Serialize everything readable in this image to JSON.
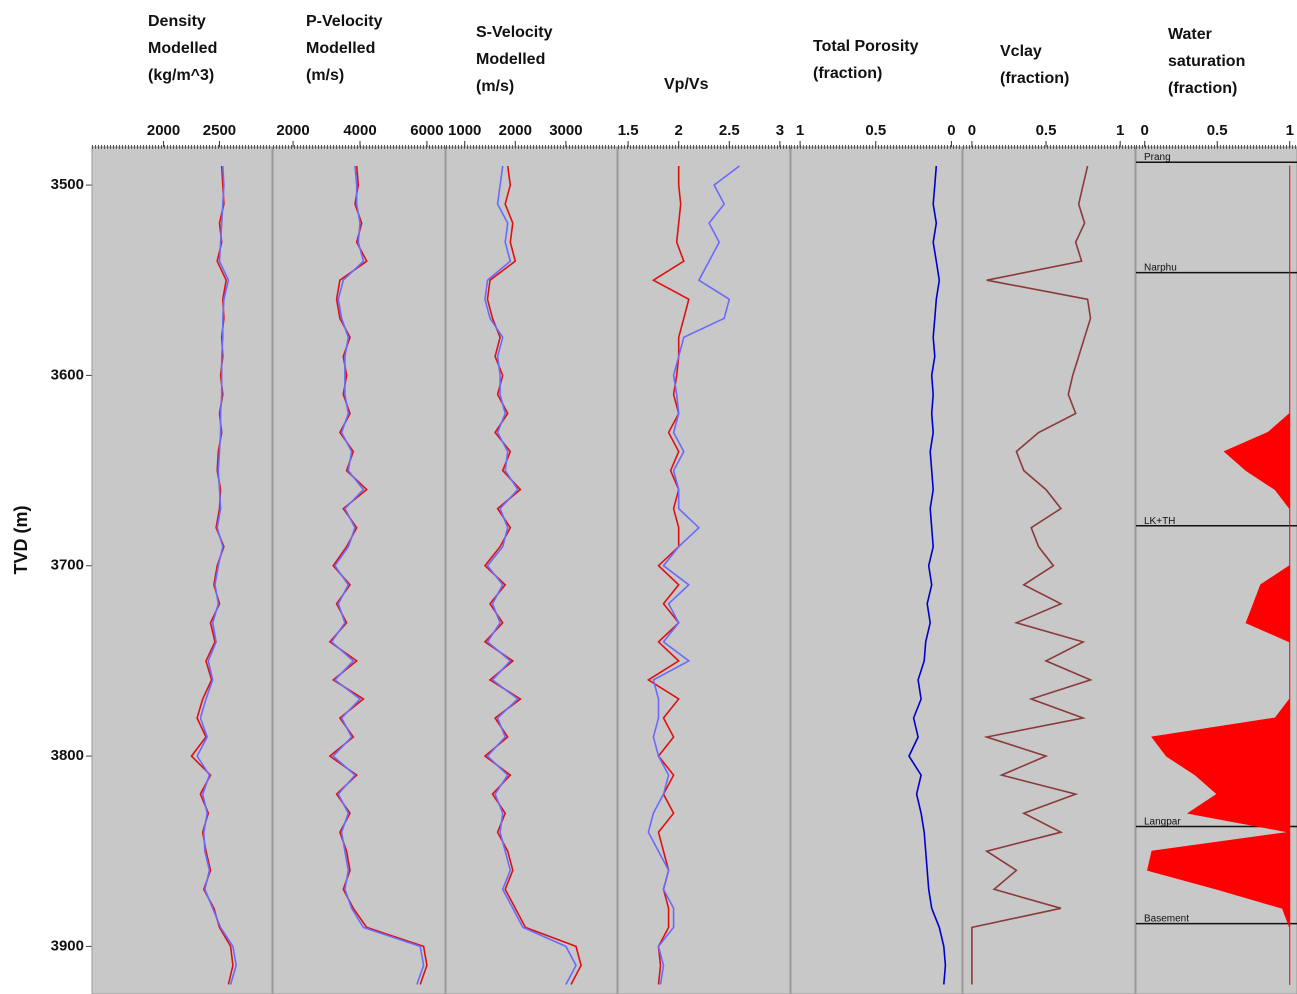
{
  "depth_axis": {
    "label": "TVD (m)",
    "ylim": [
      3480,
      3925
    ],
    "yticks": [
      3500,
      3600,
      3700,
      3800,
      3900
    ],
    "depths": [
      3490,
      3500,
      3510,
      3520,
      3530,
      3540,
      3550,
      3560,
      3570,
      3580,
      3590,
      3600,
      3610,
      3620,
      3630,
      3640,
      3650,
      3660,
      3670,
      3680,
      3690,
      3700,
      3710,
      3720,
      3730,
      3740,
      3750,
      3760,
      3770,
      3780,
      3790,
      3800,
      3810,
      3820,
      3830,
      3840,
      3850,
      3860,
      3870,
      3880,
      3890,
      3900,
      3910,
      3920
    ]
  },
  "chart_data": [
    {
      "type": "line",
      "title": [
        "Density",
        "Modelled",
        "(kg/m^3)"
      ],
      "xlim": [
        1360,
        2970
      ],
      "xticks": [
        2000,
        2500
      ],
      "series": [
        {
          "color": "#e01010",
          "values": [
            2520,
            2530,
            2540,
            2500,
            2520,
            2480,
            2560,
            2530,
            2540,
            2520,
            2530,
            2510,
            2530,
            2500,
            2520,
            2490,
            2480,
            2510,
            2500,
            2470,
            2540,
            2480,
            2450,
            2500,
            2420,
            2460,
            2380,
            2430,
            2350,
            2300,
            2380,
            2250,
            2420,
            2330,
            2400,
            2350,
            2380,
            2420,
            2360,
            2450,
            2500,
            2600,
            2620,
            2580
          ]
        },
        {
          "color": "#6a6aff",
          "values": [
            2530,
            2540,
            2530,
            2520,
            2510,
            2500,
            2580,
            2540,
            2530,
            2530,
            2520,
            2520,
            2520,
            2510,
            2510,
            2500,
            2490,
            2500,
            2510,
            2480,
            2530,
            2490,
            2460,
            2490,
            2440,
            2470,
            2400,
            2440,
            2380,
            2330,
            2390,
            2300,
            2410,
            2350,
            2390,
            2360,
            2370,
            2410,
            2370,
            2440,
            2510,
            2620,
            2650,
            2600
          ]
        }
      ]
    },
    {
      "type": "line",
      "title": [
        "P-Velocity",
        "Modelled",
        "(m/s)"
      ],
      "xlim": [
        1400,
        6540
      ],
      "xticks": [
        2000,
        4000,
        6000
      ],
      "series": [
        {
          "color": "#e01010",
          "values": [
            3900,
            3950,
            3850,
            4050,
            3900,
            4200,
            3400,
            3300,
            3400,
            3700,
            3500,
            3600,
            3500,
            3700,
            3400,
            3800,
            3600,
            4200,
            3500,
            3900,
            3600,
            3200,
            3700,
            3300,
            3600,
            3100,
            3900,
            3200,
            4100,
            3400,
            3800,
            3100,
            3900,
            3300,
            3700,
            3400,
            3600,
            3700,
            3500,
            3800,
            4200,
            5900,
            6000,
            5800
          ]
        },
        {
          "color": "#6a6aff",
          "values": [
            3850,
            3900,
            3900,
            4000,
            3950,
            4100,
            3500,
            3350,
            3450,
            3650,
            3550,
            3550,
            3550,
            3650,
            3450,
            3750,
            3650,
            4100,
            3550,
            3850,
            3650,
            3250,
            3650,
            3350,
            3550,
            3150,
            3800,
            3250,
            4000,
            3450,
            3750,
            3200,
            3850,
            3350,
            3650,
            3450,
            3550,
            3650,
            3550,
            3750,
            4100,
            5800,
            5900,
            5700
          ]
        }
      ]
    },
    {
      "type": "line",
      "title": [
        "S-Velocity",
        "Modelled",
        "(m/s)"
      ],
      "xlim": [
        630,
        4010
      ],
      "xticks": [
        1000,
        2000,
        3000
      ],
      "series": [
        {
          "color": "#e01010",
          "values": [
            1850,
            1900,
            1800,
            1950,
            1900,
            2000,
            1500,
            1450,
            1550,
            1700,
            1600,
            1750,
            1650,
            1850,
            1600,
            1900,
            1750,
            2100,
            1650,
            1900,
            1700,
            1400,
            1800,
            1500,
            1750,
            1400,
            1950,
            1500,
            2100,
            1600,
            1850,
            1400,
            1900,
            1550,
            1800,
            1650,
            1850,
            1950,
            1800,
            2000,
            2200,
            3200,
            3300,
            3100
          ]
        },
        {
          "color": "#6a6aff",
          "values": [
            1750,
            1700,
            1650,
            1850,
            1800,
            1900,
            1450,
            1400,
            1500,
            1750,
            1650,
            1700,
            1700,
            1800,
            1650,
            1850,
            1800,
            2050,
            1700,
            1850,
            1750,
            1450,
            1750,
            1550,
            1700,
            1450,
            1900,
            1550,
            2050,
            1650,
            1800,
            1450,
            1850,
            1600,
            1750,
            1700,
            1800,
            1900,
            1750,
            1950,
            2150,
            3000,
            3200,
            3000
          ]
        }
      ]
    },
    {
      "type": "line",
      "title": [
        "Vp/Vs"
      ],
      "xlim": [
        1.4,
        3.1
      ],
      "xticks": [
        1.5,
        2,
        2.5,
        3
      ],
      "series": [
        {
          "color": "#e01010",
          "values": [
            2.0,
            2.0,
            2.02,
            2.0,
            1.98,
            2.05,
            1.75,
            2.1,
            2.05,
            2.0,
            2.0,
            1.98,
            1.95,
            2.0,
            1.9,
            2.0,
            1.92,
            2.0,
            1.95,
            2.0,
            2.0,
            1.8,
            2.0,
            1.85,
            2.0,
            1.8,
            2.0,
            1.7,
            2.0,
            1.85,
            1.95,
            1.8,
            1.95,
            1.85,
            1.95,
            1.8,
            1.85,
            1.9,
            1.85,
            1.9,
            1.9,
            1.8,
            1.82,
            1.8
          ]
        },
        {
          "color": "#6a6aff",
          "values": [
            2.6,
            2.35,
            2.45,
            2.3,
            2.4,
            2.3,
            2.2,
            2.5,
            2.45,
            2.05,
            2.0,
            1.95,
            1.98,
            2.0,
            1.95,
            2.05,
            1.95,
            2.0,
            2.0,
            2.2,
            2.0,
            1.85,
            2.1,
            1.9,
            2.0,
            1.85,
            2.1,
            1.75,
            1.8,
            1.8,
            1.75,
            1.8,
            1.9,
            1.85,
            1.75,
            1.7,
            1.8,
            1.9,
            1.85,
            1.95,
            1.95,
            1.8,
            1.85,
            1.82
          ]
        }
      ]
    },
    {
      "type": "line",
      "title": [
        "Total Porosity",
        "(fraction)"
      ],
      "xlim": [
        1.06,
        -0.07
      ],
      "xticks": [
        1,
        0.5,
        0
      ],
      "series": [
        {
          "color": "#0000cc",
          "values": [
            0.1,
            0.11,
            0.12,
            0.1,
            0.12,
            0.1,
            0.08,
            0.1,
            0.11,
            0.12,
            0.11,
            0.13,
            0.12,
            0.13,
            0.12,
            0.14,
            0.13,
            0.12,
            0.14,
            0.13,
            0.12,
            0.15,
            0.13,
            0.16,
            0.14,
            0.17,
            0.18,
            0.22,
            0.2,
            0.25,
            0.22,
            0.28,
            0.2,
            0.23,
            0.2,
            0.18,
            0.17,
            0.16,
            0.15,
            0.13,
            0.08,
            0.05,
            0.04,
            0.05
          ]
        }
      ]
    },
    {
      "type": "line",
      "title": [
        "Vclay",
        "(fraction)"
      ],
      "xlim": [
        -0.06,
        1.1
      ],
      "xticks": [
        0,
        0.5,
        1
      ],
      "series": [
        {
          "color": "#8b3a3a",
          "values": [
            0.78,
            0.75,
            0.72,
            0.76,
            0.7,
            0.74,
            0.1,
            0.78,
            0.8,
            0.76,
            0.72,
            0.68,
            0.65,
            0.7,
            0.45,
            0.3,
            0.35,
            0.5,
            0.6,
            0.4,
            0.45,
            0.55,
            0.35,
            0.6,
            0.3,
            0.75,
            0.5,
            0.8,
            0.4,
            0.75,
            0.1,
            0.5,
            0.2,
            0.7,
            0.35,
            0.6,
            0.1,
            0.3,
            0.15,
            0.6,
            0,
            0,
            0,
            0
          ]
        }
      ]
    },
    {
      "type": "area",
      "title": [
        "Water",
        "saturation",
        "(fraction)"
      ],
      "xlim": [
        -0.06,
        1.05
      ],
      "xticks": [
        0,
        0.5,
        1
      ],
      "series": [
        {
          "color": "#ff0000",
          "values": [
            1,
            1,
            1,
            1,
            1,
            1,
            1,
            1,
            1,
            1,
            1,
            1,
            1,
            1,
            0.85,
            0.55,
            0.7,
            0.9,
            1,
            1,
            1,
            1,
            0.8,
            0.75,
            0.7,
            1,
            1,
            1,
            1,
            0.9,
            0.05,
            0.15,
            0.35,
            0.5,
            0.3,
            1,
            0.05,
            0.02,
            0.5,
            0.95,
            1,
            1,
            1,
            1
          ]
        }
      ],
      "formation_tops": [
        {
          "name": "Prang",
          "depth": 3488
        },
        {
          "name": "Narphu",
          "depth": 3546
        },
        {
          "name": "LK+TH",
          "depth": 3679
        },
        {
          "name": "Langpar",
          "depth": 3837
        },
        {
          "name": "Basement",
          "depth": 3888
        }
      ]
    }
  ]
}
